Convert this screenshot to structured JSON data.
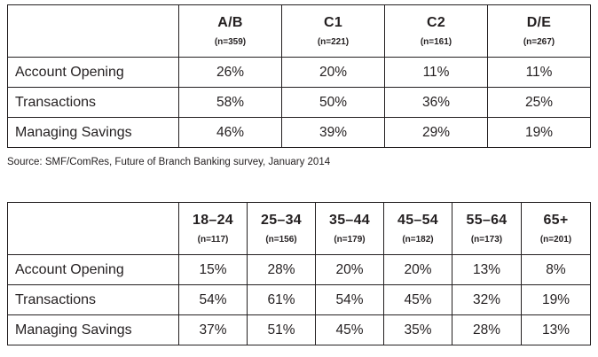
{
  "table1": {
    "columns": [
      {
        "label": "A/B",
        "n": "(n=359)"
      },
      {
        "label": "C1",
        "n": "(n=221)"
      },
      {
        "label": "C2",
        "n": "(n=161)"
      },
      {
        "label": "D/E",
        "n": "(n=267)"
      }
    ],
    "rows": [
      {
        "label": "Account Opening",
        "values": [
          "26%",
          "20%",
          "11%",
          "11%"
        ]
      },
      {
        "label": "Transactions",
        "values": [
          "58%",
          "50%",
          "36%",
          "25%"
        ]
      },
      {
        "label": "Managing Savings",
        "values": [
          "46%",
          "39%",
          "29%",
          "19%"
        ]
      }
    ]
  },
  "source": "Source: SMF/ComRes, Future of Branch Banking survey, January 2014",
  "table2": {
    "columns": [
      {
        "label": "18–24",
        "n": "(n=117)"
      },
      {
        "label": "25–34",
        "n": "(n=156)"
      },
      {
        "label": "35–44",
        "n": "(n=179)"
      },
      {
        "label": "45–54",
        "n": "(n=182)"
      },
      {
        "label": "55–64",
        "n": "(n=173)"
      },
      {
        "label": "65+",
        "n": "(n=201)"
      }
    ],
    "rows": [
      {
        "label": "Account Opening",
        "values": [
          "15%",
          "28%",
          "20%",
          "20%",
          "13%",
          "8%"
        ]
      },
      {
        "label": "Transactions",
        "values": [
          "54%",
          "61%",
          "54%",
          "45%",
          "32%",
          "19%"
        ]
      },
      {
        "label": "Managing Savings",
        "values": [
          "37%",
          "51%",
          "45%",
          "35%",
          "28%",
          "13%"
        ]
      }
    ]
  }
}
